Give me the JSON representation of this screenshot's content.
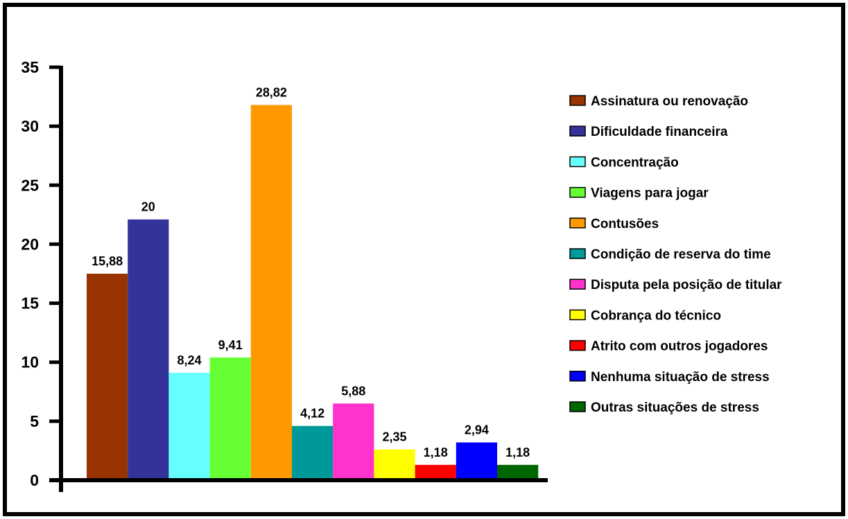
{
  "chart_data": {
    "type": "bar",
    "title": "",
    "xlabel": "",
    "ylabel": "",
    "ylim": [
      0,
      35
    ],
    "yticks": [
      0,
      5,
      10,
      15,
      20,
      25,
      30,
      35
    ],
    "ytick_labels": [
      "0",
      "5",
      "10",
      "15",
      "20",
      "25",
      "30",
      "35"
    ],
    "grid": false,
    "legend_position": "right",
    "series": [
      {
        "name": "Assinatura ou renovação",
        "value": 17.5,
        "label": "15,88",
        "color": "#993300"
      },
      {
        "name": "Dificuldade financeira",
        "value": 22.1,
        "label": "20",
        "color": "#333399"
      },
      {
        "name": "Concentração",
        "value": 9.1,
        "label": "8,24",
        "color": "#66FFFF"
      },
      {
        "name": "Viagens para jogar",
        "value": 10.4,
        "label": "9,41",
        "color": "#66FF33"
      },
      {
        "name": "Contusões",
        "value": 31.8,
        "label": "28,82",
        "color": "#FF9900"
      },
      {
        "name": "Condição de reserva do time",
        "value": 4.6,
        "label": "4,12",
        "color": "#009999"
      },
      {
        "name": "Disputa pela posição de titular",
        "value": 6.5,
        "label": "5,88",
        "color": "#FF33CC"
      },
      {
        "name": "Cobrança do técnico",
        "value": 2.6,
        "label": "2,35",
        "color": "#FFFF00"
      },
      {
        "name": "Atrito com outros jogadores",
        "value": 1.3,
        "label": "1,18",
        "color": "#FF0000"
      },
      {
        "name": "Nenhuma situação de stress",
        "value": 3.2,
        "label": "2,94",
        "color": "#0000FF"
      },
      {
        "name": "Outras situações de stress",
        "value": 1.3,
        "label": "1,18",
        "color": "#006600"
      }
    ]
  }
}
